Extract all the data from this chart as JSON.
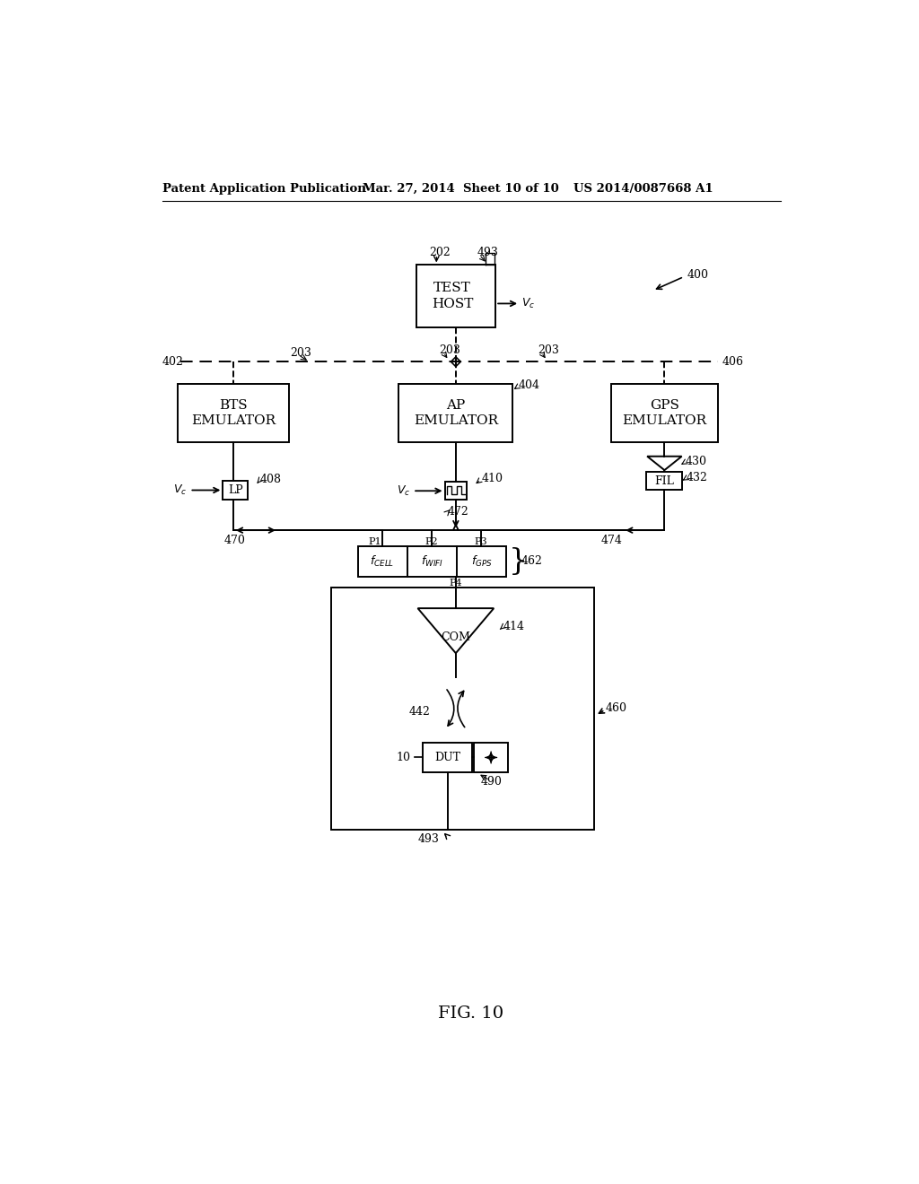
{
  "bg_color": "#ffffff",
  "header_left": "Patent Application Publication",
  "header_mid": "Mar. 27, 2014  Sheet 10 of 10",
  "header_right": "US 2014/0087668 A1",
  "fig_label": "FIG. 10"
}
